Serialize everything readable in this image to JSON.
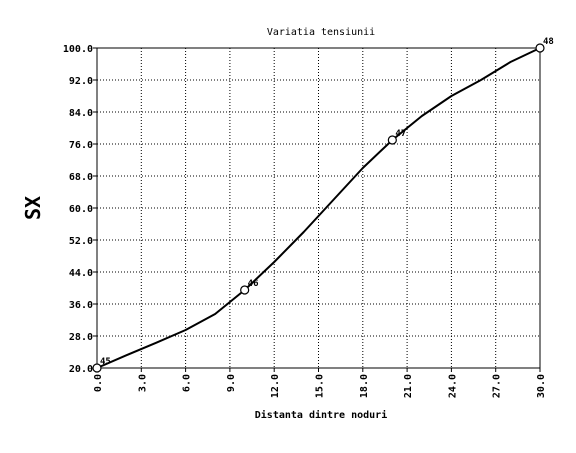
{
  "chart_data": {
    "type": "line",
    "title": "Variatia tensiunii",
    "xlabel": "Distanta dintre noduri",
    "ylabel": "SX",
    "xlim": [
      0,
      30
    ],
    "ylim": [
      20,
      100
    ],
    "xticks": [
      "0.0",
      "3.0",
      "6.0",
      "9.0",
      "12.0",
      "15.0",
      "18.0",
      "21.0",
      "24.0",
      "27.0",
      "30.0"
    ],
    "yticks": [
      "20.0",
      "28.0",
      "36.0",
      "44.0",
      "52.0",
      "60.0",
      "68.0",
      "76.0",
      "84.0",
      "92.0",
      "100.0"
    ],
    "grid": true,
    "series": [
      {
        "values": [
          {
            "x": 0.0,
            "y": 20.0
          },
          {
            "x": 2.0,
            "y": 23.2
          },
          {
            "x": 4.0,
            "y": 26.3
          },
          {
            "x": 6.0,
            "y": 29.5
          },
          {
            "x": 8.0,
            "y": 33.5
          },
          {
            "x": 10.0,
            "y": 39.5
          },
          {
            "x": 12.0,
            "y": 46.5
          },
          {
            "x": 14.0,
            "y": 54.0
          },
          {
            "x": 16.0,
            "y": 62.0
          },
          {
            "x": 18.0,
            "y": 70.0
          },
          {
            "x": 20.0,
            "y": 77.0
          },
          {
            "x": 22.0,
            "y": 83.0
          },
          {
            "x": 24.0,
            "y": 88.0
          },
          {
            "x": 26.0,
            "y": 92.0
          },
          {
            "x": 28.0,
            "y": 96.5
          },
          {
            "x": 30.0,
            "y": 100.0
          }
        ]
      }
    ],
    "markers": [
      {
        "label": "45",
        "x": 0.0,
        "y": 20.0
      },
      {
        "label": "46",
        "x": 10.0,
        "y": 39.5
      },
      {
        "label": "47",
        "x": 20.0,
        "y": 77.0
      },
      {
        "label": "48",
        "x": 30.0,
        "y": 100.0
      }
    ],
    "colors": {
      "line": "#000000",
      "grid": "#000000",
      "background": "#ffffff"
    }
  }
}
